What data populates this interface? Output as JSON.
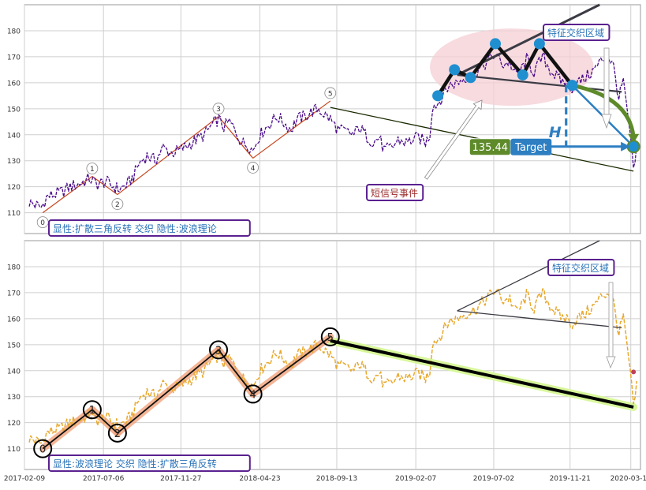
{
  "colors": {
    "grid": "#cfcfcf",
    "frame": "#9a9a9a",
    "price_top": "#4b0c8a",
    "price_bottom": "#e8a92e",
    "wave_line_top": "#c8431b",
    "wave_line_bottom": "#111111",
    "wave_band_bottom": "#f2a37c",
    "trendline_band": "#d8f79a",
    "triangle_line": "#3b3b45",
    "zone_fill": "#f4cfd4",
    "marker_blue": "#1f8fd0",
    "target_green": "#5e8a2a",
    "target_blue": "#2d7fc2",
    "label_border": "#5a2190",
    "label_text_blue": "#2a73b8",
    "label_text_red": "#9c2b2b"
  },
  "chart_data": [
    {
      "type": "line",
      "panel": "top",
      "ylim": [
        102,
        190
      ],
      "yticks": [
        110,
        120,
        130,
        140,
        150,
        160,
        170,
        180
      ],
      "x_ticks": [
        "2017-02-09",
        "2017-07-06",
        "2017-11-27",
        "2018-04-23",
        "2018-09-13",
        "2019-02-07",
        "2019-07-02",
        "2019-11-21",
        "2020-03-13"
      ],
      "x_range": [
        "2017-02-09",
        "2020-03-31"
      ],
      "grid": true,
      "series": [
        {
          "style": "price",
          "points": [
            [
              "2017-02-18",
              114
            ],
            [
              "2017-03-01",
              113
            ],
            [
              "2017-03-12",
              112
            ],
            [
              "2017-03-22",
              116
            ],
            [
              "2017-04-05",
              117
            ],
            [
              "2017-04-20",
              118
            ],
            [
              "2017-05-05",
              120
            ],
            [
              "2017-05-20",
              121
            ],
            [
              "2017-06-10",
              123
            ],
            [
              "2017-06-25",
              121
            ],
            [
              "2017-07-10",
              122
            ],
            [
              "2017-07-25",
              120
            ],
            [
              "2017-08-05",
              119
            ],
            [
              "2017-08-20",
              121
            ],
            [
              "2017-08-31",
              124
            ],
            [
              "2017-09-10",
              129
            ],
            [
              "2017-09-25",
              132
            ],
            [
              "2017-10-10",
              130
            ],
            [
              "2017-10-25",
              135
            ],
            [
              "2017-11-10",
              133
            ],
            [
              "2017-11-25",
              134
            ],
            [
              "2017-12-10",
              136
            ],
            [
              "2017-12-25",
              138
            ],
            [
              "2018-01-10",
              140
            ],
            [
              "2018-01-25",
              144
            ],
            [
              "2018-02-05",
              146
            ],
            [
              "2018-02-15",
              143
            ],
            [
              "2018-02-25",
              145
            ],
            [
              "2018-03-10",
              141
            ],
            [
              "2018-03-20",
              137
            ],
            [
              "2018-04-01",
              136
            ],
            [
              "2018-04-10",
              134
            ],
            [
              "2018-04-20",
              139
            ],
            [
              "2018-05-01",
              142
            ],
            [
              "2018-05-15",
              145
            ],
            [
              "2018-05-25",
              147
            ],
            [
              "2018-06-10",
              144
            ],
            [
              "2018-06-20",
              142
            ],
            [
              "2018-07-01",
              146
            ],
            [
              "2018-07-15",
              147
            ],
            [
              "2018-07-30",
              149
            ],
            [
              "2018-08-10",
              150
            ],
            [
              "2018-08-20",
              148
            ],
            [
              "2018-09-01",
              146
            ],
            [
              "2018-09-15",
              142
            ],
            [
              "2018-10-01",
              141
            ],
            [
              "2018-10-15",
              140
            ],
            [
              "2018-10-25",
              143
            ],
            [
              "2018-11-05",
              140
            ],
            [
              "2018-11-20",
              137
            ],
            [
              "2018-12-01",
              139
            ],
            [
              "2018-12-10",
              134
            ],
            [
              "2018-12-25",
              135
            ],
            [
              "2019-01-05",
              138
            ],
            [
              "2019-01-20",
              137
            ],
            [
              "2019-02-01",
              138
            ],
            [
              "2019-02-12",
              139
            ],
            [
              "2019-02-25",
              137
            ],
            [
              "2019-03-05",
              140
            ],
            [
              "2019-03-10",
              151
            ],
            [
              "2019-03-20",
              152
            ],
            [
              "2019-04-01",
              156
            ],
            [
              "2019-04-10",
              159
            ],
            [
              "2019-04-25",
              160
            ],
            [
              "2019-05-10",
              162
            ],
            [
              "2019-05-25",
              163
            ],
            [
              "2019-06-10",
              166
            ],
            [
              "2019-06-25",
              169
            ],
            [
              "2019-07-05",
              171
            ],
            [
              "2019-07-20",
              167
            ],
            [
              "2019-08-01",
              168
            ],
            [
              "2019-08-10",
              163
            ],
            [
              "2019-08-20",
              164
            ],
            [
              "2019-09-01",
              169
            ],
            [
              "2019-09-15",
              164
            ],
            [
              "2019-10-01",
              170
            ],
            [
              "2019-10-15",
              165
            ],
            [
              "2019-11-01",
              161
            ],
            [
              "2019-11-15",
              160
            ],
            [
              "2019-11-25",
              158
            ],
            [
              "2019-12-05",
              160
            ],
            [
              "2019-12-20",
              162
            ],
            [
              "2020-01-05",
              165
            ],
            [
              "2020-01-20",
              169
            ],
            [
              "2020-02-01",
              170
            ],
            [
              "2020-02-10",
              166
            ],
            [
              "2020-02-20",
              154
            ],
            [
              "2020-02-28",
              161
            ],
            [
              "2020-03-05",
              150
            ],
            [
              "2020-03-12",
              140
            ],
            [
              "2020-03-18",
              125
            ],
            [
              "2020-03-24",
              136
            ]
          ]
        }
      ],
      "wave_points": [
        {
          "label": "0",
          "date": "2017-03-15",
          "value": 110
        },
        {
          "label": "1",
          "date": "2017-06-15",
          "value": 124
        },
        {
          "label": "2",
          "date": "2017-08-01",
          "value": 117
        },
        {
          "label": "3",
          "date": "2018-02-05",
          "value": 147
        },
        {
          "label": "4",
          "date": "2018-04-10",
          "value": 131
        },
        {
          "label": "5",
          "date": "2018-09-01",
          "value": 153
        }
      ],
      "trendline": [
        [
          "2018-09-01",
          150.5
        ],
        [
          "2020-03-18",
          126
        ]
      ],
      "triangle": {
        "upper": [
          [
            "2019-04-25",
            163
          ],
          [
            "2020-01-15",
            190
          ]
        ],
        "lower": [
          [
            "2019-04-25",
            163
          ],
          [
            "2020-02-25",
            156.5
          ]
        ],
        "zigzag": [
          [
            "2019-03-20",
            155
          ],
          [
            "2019-04-20",
            165
          ],
          [
            "2019-05-20",
            162
          ],
          [
            "2019-07-05",
            175
          ],
          [
            "2019-08-25",
            163
          ],
          [
            "2019-09-25",
            175
          ],
          [
            "2019-11-25",
            159
          ],
          [
            "2020-03-18",
            135.44
          ]
        ]
      },
      "target": {
        "value": 135.44,
        "value_label": "135.44",
        "label": "Target",
        "h_label": "H",
        "from_date": "2019-11-21",
        "height_from": 159,
        "date": "2020-03-18"
      },
      "zone_label": "特征交织区域",
      "signal_label": "短信号事件",
      "caption": "显性:扩散三角反转 交织 隐性:波浪理论"
    },
    {
      "type": "line",
      "panel": "bottom",
      "ylim": [
        102,
        190
      ],
      "yticks": [
        110,
        120,
        130,
        140,
        150,
        160,
        170,
        180
      ],
      "x_ticks": [
        "2017-02-09",
        "2017-07-06",
        "2017-11-27",
        "2018-04-23",
        "2018-09-13",
        "2019-02-07",
        "2019-07-02",
        "2019-11-21",
        "2020-03-13"
      ],
      "x_range": [
        "2017-02-09",
        "2020-03-31"
      ],
      "grid": true,
      "series": [
        {
          "style": "price",
          "points": [
            [
              "2017-02-18",
              114
            ],
            [
              "2017-03-01",
              113
            ],
            [
              "2017-03-12",
              112
            ],
            [
              "2017-03-22",
              116
            ],
            [
              "2017-04-05",
              117
            ],
            [
              "2017-04-20",
              118
            ],
            [
              "2017-05-05",
              120
            ],
            [
              "2017-05-20",
              121
            ],
            [
              "2017-06-10",
              123
            ],
            [
              "2017-06-25",
              121
            ],
            [
              "2017-07-10",
              122
            ],
            [
              "2017-07-25",
              120
            ],
            [
              "2017-08-05",
              119
            ],
            [
              "2017-08-20",
              121
            ],
            [
              "2017-08-31",
              124
            ],
            [
              "2017-09-10",
              129
            ],
            [
              "2017-09-25",
              132
            ],
            [
              "2017-10-10",
              130
            ],
            [
              "2017-10-25",
              135
            ],
            [
              "2017-11-10",
              133
            ],
            [
              "2017-11-25",
              134
            ],
            [
              "2017-12-10",
              136
            ],
            [
              "2017-12-25",
              138
            ],
            [
              "2018-01-10",
              140
            ],
            [
              "2018-01-25",
              144
            ],
            [
              "2018-02-05",
              146
            ],
            [
              "2018-02-15",
              143
            ],
            [
              "2018-02-25",
              145
            ],
            [
              "2018-03-10",
              141
            ],
            [
              "2018-03-20",
              137
            ],
            [
              "2018-04-01",
              136
            ],
            [
              "2018-04-10",
              134
            ],
            [
              "2018-04-20",
              139
            ],
            [
              "2018-05-01",
              142
            ],
            [
              "2018-05-15",
              145
            ],
            [
              "2018-05-25",
              147
            ],
            [
              "2018-06-10",
              144
            ],
            [
              "2018-06-20",
              142
            ],
            [
              "2018-07-01",
              146
            ],
            [
              "2018-07-15",
              147
            ],
            [
              "2018-07-30",
              149
            ],
            [
              "2018-08-10",
              150
            ],
            [
              "2018-08-20",
              148
            ],
            [
              "2018-09-01",
              146
            ],
            [
              "2018-09-15",
              142
            ],
            [
              "2018-10-01",
              141
            ],
            [
              "2018-10-15",
              140
            ],
            [
              "2018-10-25",
              143
            ],
            [
              "2018-11-05",
              140
            ],
            [
              "2018-11-20",
              137
            ],
            [
              "2018-12-01",
              139
            ],
            [
              "2018-12-10",
              134
            ],
            [
              "2018-12-25",
              135
            ],
            [
              "2019-01-05",
              138
            ],
            [
              "2019-01-20",
              137
            ],
            [
              "2019-02-01",
              138
            ],
            [
              "2019-02-12",
              139
            ],
            [
              "2019-02-25",
              137
            ],
            [
              "2019-03-05",
              140
            ],
            [
              "2019-03-10",
              151
            ],
            [
              "2019-03-20",
              152
            ],
            [
              "2019-04-01",
              156
            ],
            [
              "2019-04-10",
              159
            ],
            [
              "2019-04-25",
              160
            ],
            [
              "2019-05-10",
              162
            ],
            [
              "2019-05-25",
              163
            ],
            [
              "2019-06-10",
              166
            ],
            [
              "2019-06-25",
              169
            ],
            [
              "2019-07-05",
              171
            ],
            [
              "2019-07-20",
              167
            ],
            [
              "2019-08-01",
              168
            ],
            [
              "2019-08-10",
              163
            ],
            [
              "2019-08-20",
              164
            ],
            [
              "2019-09-01",
              169
            ],
            [
              "2019-09-15",
              164
            ],
            [
              "2019-10-01",
              170
            ],
            [
              "2019-10-15",
              165
            ],
            [
              "2019-11-01",
              161
            ],
            [
              "2019-11-15",
              160
            ],
            [
              "2019-11-25",
              158
            ],
            [
              "2019-12-05",
              160
            ],
            [
              "2019-12-20",
              162
            ],
            [
              "2020-01-05",
              165
            ],
            [
              "2020-01-20",
              169
            ],
            [
              "2020-02-01",
              170
            ],
            [
              "2020-02-10",
              166
            ],
            [
              "2020-02-20",
              154
            ],
            [
              "2020-02-28",
              161
            ],
            [
              "2020-03-05",
              150
            ],
            [
              "2020-03-12",
              140
            ],
            [
              "2020-03-18",
              125
            ],
            [
              "2020-03-24",
              136
            ]
          ]
        }
      ],
      "wave_points": [
        {
          "label": "0",
          "date": "2017-03-15",
          "value": 110
        },
        {
          "label": "1",
          "date": "2017-06-15",
          "value": 125
        },
        {
          "label": "2",
          "date": "2017-08-01",
          "value": 116
        },
        {
          "label": "3",
          "date": "2018-02-05",
          "value": 148
        },
        {
          "label": "4",
          "date": "2018-04-10",
          "value": 131
        },
        {
          "label": "5",
          "date": "2018-09-01",
          "value": 153
        }
      ],
      "trendline": [
        [
          "2018-09-01",
          151.5
        ],
        [
          "2020-03-18",
          126
        ]
      ],
      "triangle": {
        "upper": [
          [
            "2019-04-25",
            163
          ],
          [
            "2020-01-15",
            190
          ]
        ],
        "lower": [
          [
            "2019-04-25",
            163
          ],
          [
            "2020-02-25",
            156.5
          ]
        ]
      },
      "end_marker": {
        "date": "2020-03-18",
        "value": 139.5
      },
      "zone_label": "特征交织区域",
      "caption": "显性:波浪理论 交织 隐性:扩散三角反转"
    }
  ]
}
